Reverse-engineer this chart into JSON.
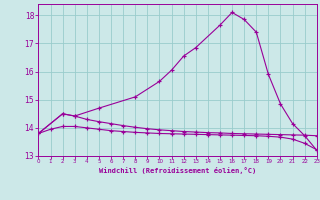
{
  "bg_color": "#cce8e8",
  "grid_color": "#99cccc",
  "line_color": "#990099",
  "xlim": [
    0,
    23
  ],
  "ylim": [
    13,
    18.4
  ],
  "xticks": [
    0,
    1,
    2,
    3,
    4,
    5,
    6,
    7,
    8,
    9,
    10,
    11,
    12,
    13,
    14,
    15,
    16,
    17,
    18,
    19,
    20,
    21,
    22,
    23
  ],
  "yticks": [
    13,
    14,
    15,
    16,
    17,
    18
  ],
  "xlabel": "Windchill (Refroidissement éolien,°C)",
  "line1_x": [
    0,
    1,
    2,
    3,
    4,
    5,
    6,
    7,
    8,
    9,
    10,
    11,
    12,
    13,
    14,
    15,
    16,
    17,
    18,
    19,
    20,
    21,
    22,
    23
  ],
  "line1_y": [
    13.8,
    13.95,
    14.05,
    14.05,
    14.0,
    13.95,
    13.9,
    13.87,
    13.84,
    13.82,
    13.8,
    13.79,
    13.78,
    13.77,
    13.76,
    13.75,
    13.74,
    13.73,
    13.72,
    13.7,
    13.67,
    13.6,
    13.45,
    13.22
  ],
  "line2_x": [
    0,
    2,
    3,
    4,
    5,
    6,
    7,
    8,
    9,
    10,
    11,
    12,
    13,
    14,
    15,
    16,
    17,
    18,
    19,
    20,
    21,
    22,
    23
  ],
  "line2_y": [
    13.8,
    14.5,
    14.42,
    14.3,
    14.22,
    14.15,
    14.08,
    14.02,
    13.97,
    13.93,
    13.9,
    13.87,
    13.85,
    13.83,
    13.82,
    13.8,
    13.79,
    13.78,
    13.77,
    13.76,
    13.75,
    13.74,
    13.72
  ],
  "line3_x": [
    0,
    2,
    3,
    5,
    8,
    10,
    11,
    12,
    13,
    15,
    16,
    17,
    18,
    19,
    20,
    21,
    22,
    23
  ],
  "line3_y": [
    13.8,
    14.5,
    14.42,
    14.7,
    15.1,
    15.65,
    16.05,
    16.55,
    16.85,
    17.65,
    18.1,
    17.85,
    17.4,
    15.9,
    14.85,
    14.15,
    13.72,
    13.2
  ]
}
